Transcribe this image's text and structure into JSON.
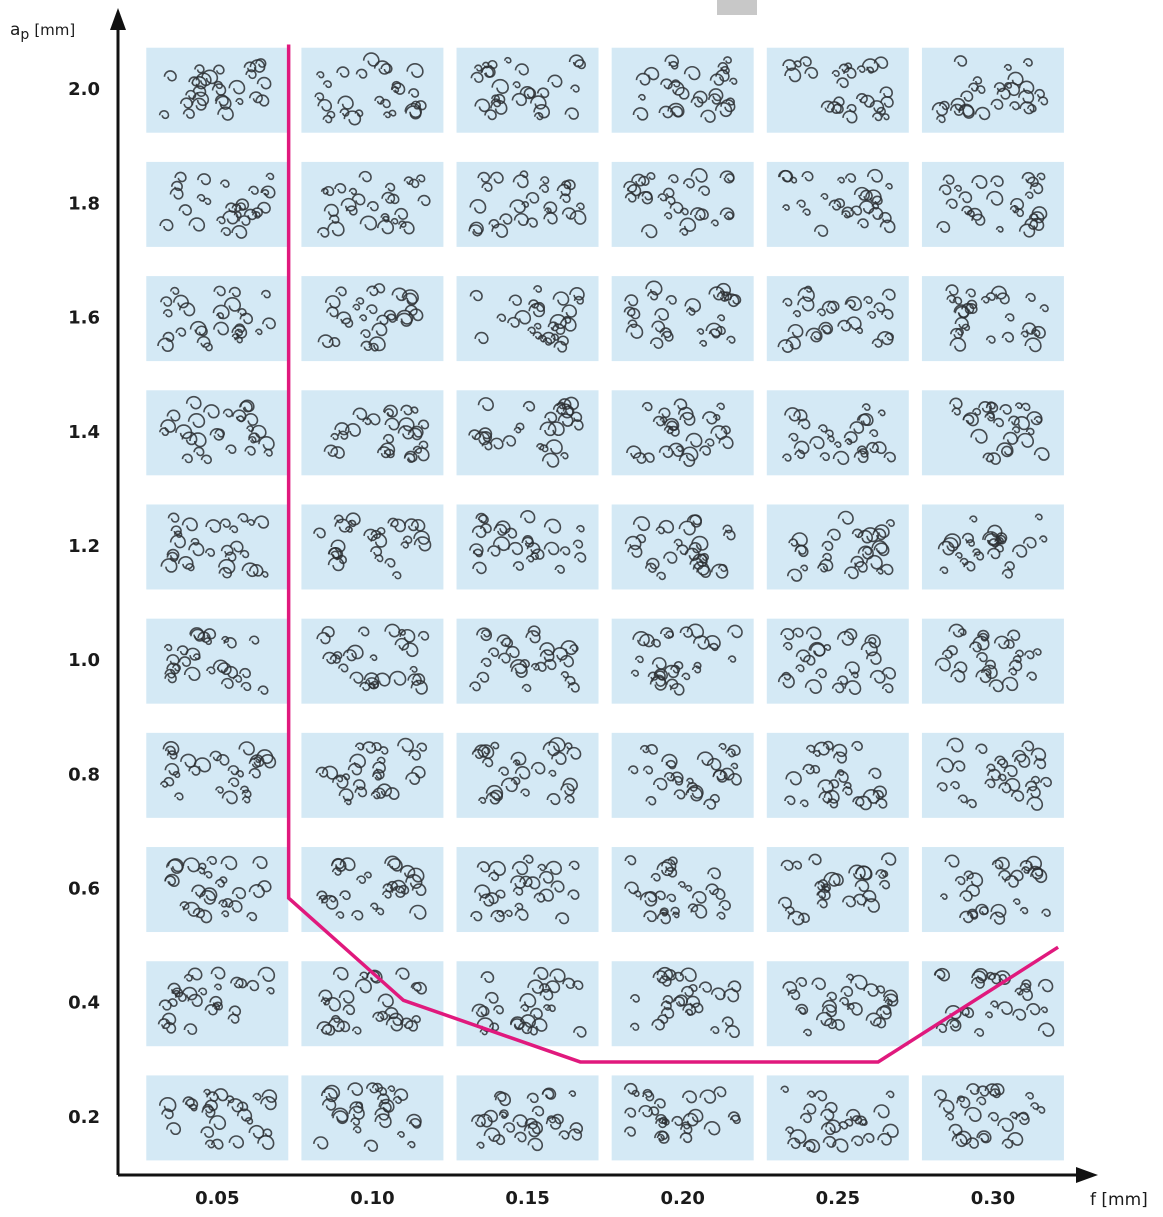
{
  "chart_data": {
    "type": "line",
    "x_label": "f [mm]",
    "y_label": "a",
    "y_label_subscript": "p",
    "y_label_unit": "[mm]",
    "xlim": [
      0.018,
      0.33
    ],
    "ylim": [
      0.1,
      2.13
    ],
    "xticks": [
      {
        "value": 0.05,
        "label": "0.05"
      },
      {
        "value": 0.1,
        "label": "0.10"
      },
      {
        "value": 0.15,
        "label": "0.15"
      },
      {
        "value": 0.2,
        "label": "0.20"
      },
      {
        "value": 0.25,
        "label": "0.25"
      },
      {
        "value": 0.3,
        "label": "0.30"
      }
    ],
    "yticks": [
      {
        "value": 2.0,
        "label": "2.0"
      },
      {
        "value": 1.8,
        "label": "1.8"
      },
      {
        "value": 1.6,
        "label": "1.6"
      },
      {
        "value": 1.4,
        "label": "1.4"
      },
      {
        "value": 1.2,
        "label": "1.2"
      },
      {
        "value": 1.0,
        "label": "1.0"
      },
      {
        "value": 0.8,
        "label": "0.8"
      },
      {
        "value": 0.6,
        "label": "0.6"
      },
      {
        "value": 0.4,
        "label": "0.4"
      },
      {
        "value": 0.2,
        "label": "0.2"
      }
    ],
    "boundary": {
      "color": "#e0197d",
      "x": [
        0.073,
        0.073,
        0.11,
        0.167,
        0.263,
        0.321
      ],
      "y": [
        2.08,
        0.585,
        0.406,
        0.298,
        0.298,
        0.499
      ]
    }
  }
}
